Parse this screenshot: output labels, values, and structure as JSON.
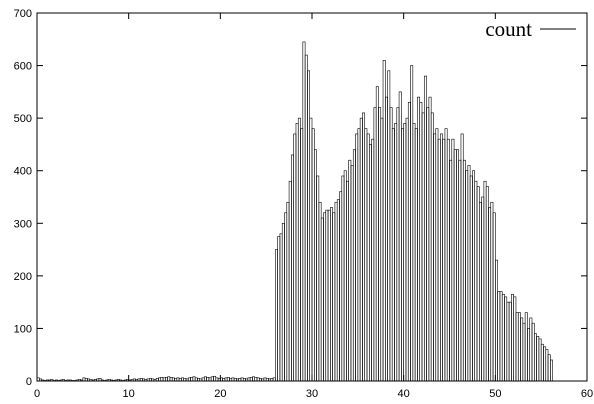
{
  "chart_data": {
    "type": "bar",
    "title": "",
    "xlabel": "",
    "ylabel": "",
    "xlim": [
      0,
      60
    ],
    "ylim": [
      0,
      700
    ],
    "xticks": [
      0,
      10,
      20,
      30,
      40,
      50,
      60
    ],
    "yticks": [
      0,
      100,
      200,
      300,
      400,
      500,
      600,
      700
    ],
    "grid": false,
    "legend": {
      "position": "top-right"
    },
    "bin_width": 0.25,
    "series": [
      {
        "name": "count",
        "x_start": 0,
        "values": [
          6,
          4,
          2,
          1,
          2,
          2,
          3,
          1,
          2,
          1,
          2,
          3,
          1,
          2,
          2,
          1,
          1,
          2,
          3,
          2,
          6,
          5,
          4,
          3,
          2,
          3,
          4,
          5,
          2,
          1,
          2,
          3,
          2,
          1,
          2,
          3,
          2,
          1,
          2,
          3,
          2,
          3,
          4,
          3,
          4,
          5,
          4,
          3,
          4,
          5,
          4,
          3,
          5,
          6,
          7,
          6,
          7,
          8,
          7,
          6,
          5,
          6,
          5,
          6,
          5,
          4,
          6,
          7,
          8,
          6,
          5,
          4,
          6,
          8,
          7,
          6,
          8,
          9,
          6,
          5,
          6,
          5,
          6,
          7,
          5,
          6,
          5,
          4,
          5,
          6,
          5,
          4,
          6,
          7,
          8,
          7,
          6,
          5,
          4,
          6,
          5,
          4,
          5,
          6,
          250,
          275,
          280,
          300,
          320,
          340,
          380,
          430,
          470,
          490,
          500,
          480,
          645,
          620,
          590,
          500,
          480,
          440,
          390,
          340,
          310,
          320,
          325,
          325,
          330,
          320,
          340,
          345,
          360,
          390,
          400,
          380,
          420,
          410,
          440,
          470,
          480,
          500,
          510,
          480,
          470,
          450,
          460,
          520,
          560,
          520,
          500,
          610,
          540,
          590,
          520,
          480,
          490,
          520,
          550,
          480,
          490,
          500,
          530,
          600,
          490,
          480,
          540,
          530,
          510,
          580,
          520,
          540,
          510,
          470,
          480,
          460,
          470,
          460,
          480,
          460,
          420,
          460,
          440,
          440,
          420,
          470,
          420,
          400,
          410,
          390,
          400,
          380,
          370,
          340,
          350,
          380,
          370,
          330,
          340,
          320,
          230,
          170,
          170,
          165,
          160,
          150,
          150,
          165,
          160,
          130,
          130,
          120,
          110,
          130,
          100,
          120,
          110,
          90,
          85,
          80,
          70,
          65,
          60,
          50,
          40
        ]
      }
    ]
  }
}
